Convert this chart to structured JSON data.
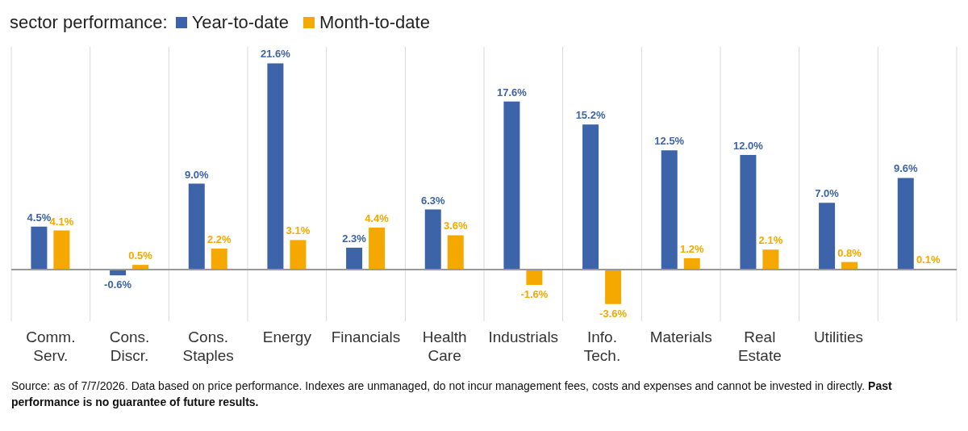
{
  "chart_data": {
    "type": "bar",
    "title": "sector performance:",
    "categories": [
      "Comm. Serv.",
      "Cons. Discr.",
      "Cons. Staples",
      "Energy",
      "Financials",
      "Health Care",
      "Industrials",
      "Info. Tech.",
      "Materials",
      "Real Estate",
      "Utilities",
      null
    ],
    "series": [
      {
        "name": "Year-to-date",
        "color": "#3d64a8",
        "values": [
          4.5,
          -0.6,
          9.0,
          21.6,
          2.3,
          6.3,
          17.6,
          15.2,
          12.5,
          12.0,
          7.0,
          9.6
        ],
        "value_labels": [
          "4.5%",
          "-0.6%",
          "9.0%",
          "21.6%",
          "2.3%",
          "6.3%",
          "17.6%",
          "15.2%",
          "12.5%",
          "12.0%",
          "7.0%",
          "9.6%"
        ]
      },
      {
        "name": "Month-to-date",
        "color": "#f5a800",
        "values": [
          4.1,
          0.5,
          2.2,
          3.1,
          4.4,
          3.6,
          -1.6,
          -3.6,
          1.2,
          2.1,
          0.8,
          0.1
        ],
        "value_labels": [
          "4.1%",
          "0.5%",
          "2.2%",
          "3.1%",
          "4.4%",
          "3.6%",
          "-1.6%",
          "-3.6%",
          "1.2%",
          "2.1%",
          "0.8%",
          "0.1%"
        ]
      }
    ],
    "grid": "x",
    "legend": "top",
    "annotations": [
      "Source: as of 7/7/2026. Data based on price performance. Indexes are unmanaged, do not incur management fees, costs and expenses and cannot be invested in directly.",
      "Past performance is no guarantee of future results."
    ]
  }
}
